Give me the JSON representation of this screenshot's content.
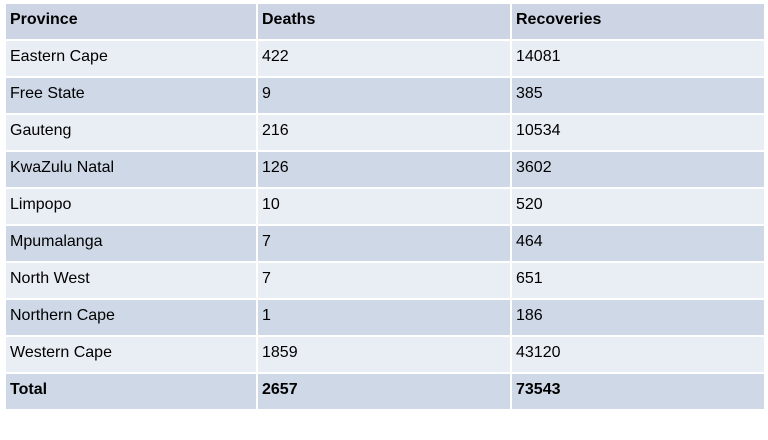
{
  "table": {
    "header": [
      "Province",
      "Deaths",
      "Recoveries"
    ],
    "rows": [
      [
        "Eastern Cape",
        422,
        14081
      ],
      [
        "Free State",
        9,
        385
      ],
      [
        "Gauteng",
        216,
        10534
      ],
      [
        "KwaZulu Natal",
        126,
        3602
      ],
      [
        "Limpopo",
        10,
        520
      ],
      [
        "Mpumalanga",
        7,
        464
      ],
      [
        "North West",
        7,
        651
      ],
      [
        "Northern Cape",
        1,
        186
      ],
      [
        "Western Cape",
        1859,
        43120
      ],
      [
        "Total",
        2657,
        73543
      ]
    ]
  }
}
